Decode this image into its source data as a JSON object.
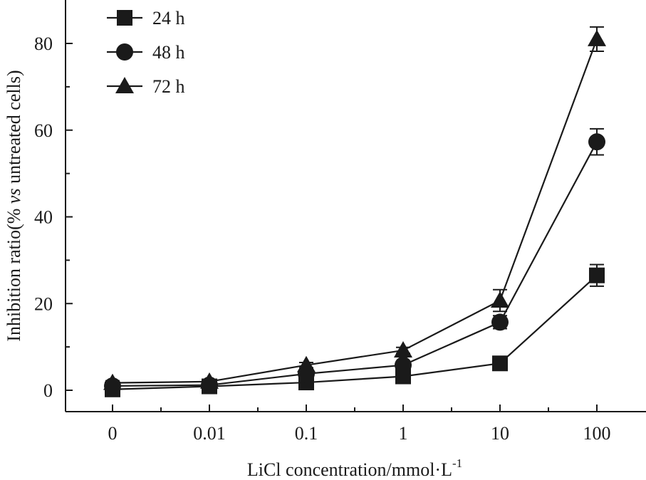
{
  "chart_data": {
    "type": "line",
    "title": "",
    "xlabel": "LiCl concentration/mmol·L",
    "xlabel_sup": "-1",
    "ylabel": "Inhibition ratio(% ",
    "ylabel_italic": "vs",
    "ylabel_end": " untreated cells)",
    "categories": [
      "0",
      "0.01",
      "0.1",
      "1",
      "10",
      "100"
    ],
    "ylim": [
      -5,
      90
    ],
    "yticks": [
      0,
      20,
      40,
      60,
      80
    ],
    "grid": false,
    "legend_position": "top-left",
    "series": [
      {
        "name": "24 h",
        "marker": "square",
        "values": [
          0.2,
          0.9,
          1.8,
          3.2,
          6.2,
          26.5
        ],
        "errors": [
          0.5,
          0.5,
          0.5,
          0.6,
          1.2,
          2.5
        ]
      },
      {
        "name": "48 h",
        "marker": "circle",
        "values": [
          1.0,
          1.2,
          3.8,
          5.8,
          15.7,
          57.3
        ],
        "errors": [
          0.5,
          0.5,
          0.5,
          0.6,
          1.5,
          3.0
        ]
      },
      {
        "name": "72 h",
        "marker": "triangle",
        "values": [
          1.7,
          2.0,
          5.8,
          9.2,
          20.7,
          81.0
        ],
        "errors": [
          0.5,
          0.5,
          0.6,
          0.7,
          2.5,
          2.8
        ]
      }
    ],
    "colors": {
      "line": "#1a1a1a",
      "marker": "#1a1a1a"
    }
  }
}
